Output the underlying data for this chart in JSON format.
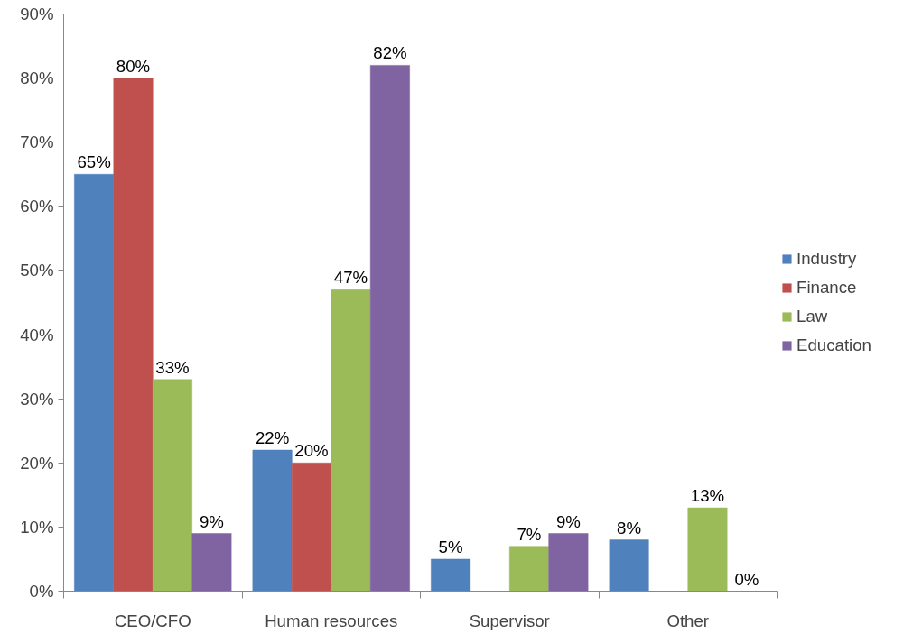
{
  "chart_data": {
    "type": "bar",
    "categories": [
      "CEO/CFO",
      "Human resources",
      "Supervisor",
      "Other"
    ],
    "series": [
      {
        "name": "Industry",
        "color": "#4f81bd",
        "values": [
          65,
          22,
          5,
          8
        ],
        "value_labels": [
          "65%",
          "22%",
          "5%",
          "8%"
        ]
      },
      {
        "name": "Finance",
        "color": "#c0504d",
        "values": [
          80,
          20,
          null,
          null
        ],
        "value_labels": [
          "80%",
          "20%",
          null,
          null
        ]
      },
      {
        "name": "Law",
        "color": "#9bbb59",
        "values": [
          33,
          47,
          7,
          13
        ],
        "value_labels": [
          "33%",
          "47%",
          "7%",
          "13%"
        ]
      },
      {
        "name": "Education",
        "color": "#8064a2",
        "values": [
          9,
          82,
          9,
          0
        ],
        "value_labels": [
          "9%",
          "82%",
          "9%",
          "0%"
        ]
      }
    ],
    "ylim": [
      0,
      90
    ],
    "yticks": [
      {
        "value": 0,
        "label": "0%"
      },
      {
        "value": 10,
        "label": "10%"
      },
      {
        "value": 20,
        "label": "20%"
      },
      {
        "value": 30,
        "label": "30%"
      },
      {
        "value": 40,
        "label": "40%"
      },
      {
        "value": 50,
        "label": "50%"
      },
      {
        "value": 60,
        "label": "60%"
      },
      {
        "value": 70,
        "label": "70%"
      },
      {
        "value": 80,
        "label": "80%"
      },
      {
        "value": 90,
        "label": "90%"
      }
    ],
    "grid": false,
    "legend": "right"
  }
}
